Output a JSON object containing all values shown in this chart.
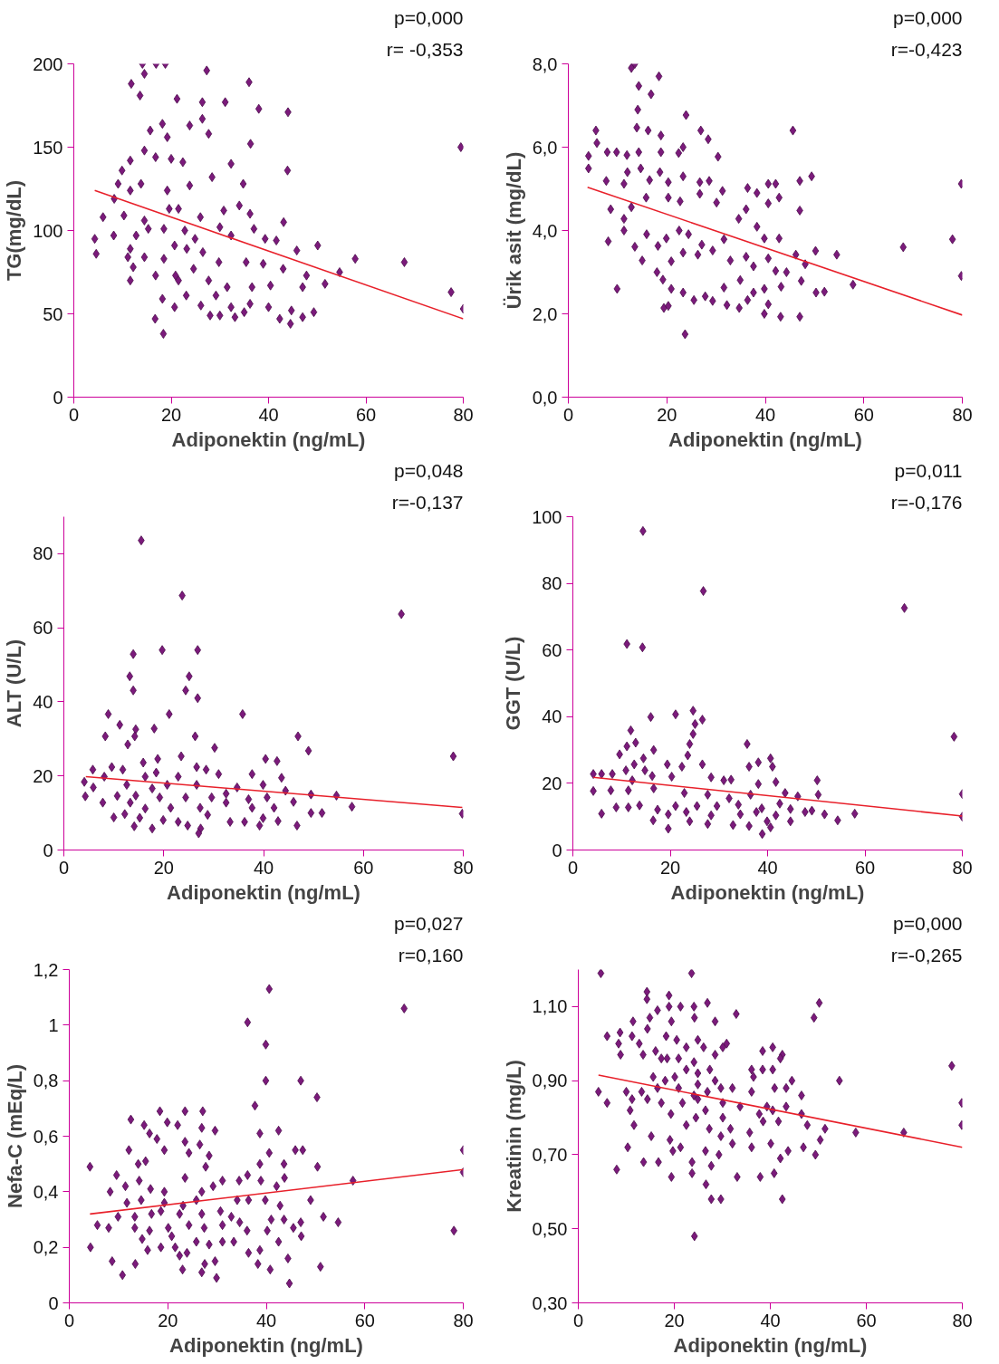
{
  "chart_data": [
    {
      "type": "scatter",
      "xlabel": "Adiponektin (ng/mL)",
      "ylabel": "TG(mg/dL)",
      "xlim": [
        0,
        80
      ],
      "xticks": [
        0,
        20,
        40,
        60,
        80
      ],
      "ylim": [
        0,
        200
      ],
      "yticks": [
        0,
        50,
        100,
        150,
        200
      ],
      "annotations": [
        "p=0,000",
        "r= -0,353"
      ],
      "series": [
        {
          "marker": "diamond",
          "color": "#7b1a7b",
          "x": [
            14.1,
            16.9,
            18.8,
            14.5,
            27.3,
            36,
            11.8,
            13.6,
            21.2,
            26.4,
            31.1,
            38,
            44,
            15.7,
            18.2,
            19.2,
            23.8,
            26.4,
            27.7,
            36.3,
            79.5,
            9.9,
            11.6,
            14.5,
            16.8,
            20,
            22.4,
            32.3,
            43.9,
            9.1,
            13.8,
            19.2,
            23.8,
            28.4,
            34.8,
            8.3,
            11.6,
            6,
            10.3,
            14.5,
            19.6,
            21.5,
            26,
            30.8,
            34,
            36.2,
            4.3,
            4.6,
            8.2,
            12.8,
            15.3,
            18.5,
            22.8,
            24.9,
            30,
            37,
            43.1,
            11.6,
            11.1,
            14.5,
            18.5,
            20.7,
            23.2,
            26.5,
            32.3,
            39.3,
            41.6,
            45.8,
            50.1,
            57.8,
            67.9,
            12.2,
            16.8,
            20.9,
            24.6,
            29.8,
            35.4,
            38.9,
            43,
            47.8,
            51.6,
            54.6,
            11.6,
            21.5,
            27.7,
            31.5,
            36.6,
            40.4,
            47,
            18.2,
            20.7,
            23.1,
            26.1,
            29.2,
            32.3,
            36.2,
            40,
            44.7,
            47,
            49.3,
            28,
            30,
            33.1,
            35,
            42.3,
            44.5,
            16.7,
            18.4,
            77.5,
            80
          ],
          "values": [
            200,
            200,
            200,
            194,
            196,
            189,
            188,
            181,
            179,
            177,
            177,
            173,
            171,
            160,
            164,
            156,
            163,
            167,
            158,
            152,
            150,
            136,
            142,
            148,
            144,
            143,
            141,
            140,
            136,
            128,
            128,
            124,
            127,
            132,
            128,
            119,
            124,
            108,
            109,
            106,
            113,
            113,
            108,
            112,
            115,
            110,
            95,
            86,
            97,
            97,
            101,
            101,
            100,
            95,
            102,
            101,
            105,
            89,
            84,
            84,
            83,
            91,
            89,
            87,
            97,
            95,
            94,
            88,
            91,
            83,
            81,
            78,
            73,
            73,
            77,
            81,
            81,
            80,
            77,
            73,
            68,
            75,
            70,
            70,
            70,
            66,
            66,
            67,
            66,
            59,
            54,
            61,
            55,
            61,
            54,
            56,
            54,
            52,
            48,
            51,
            49,
            49,
            48,
            51,
            47,
            44,
            47,
            38,
            63,
            53
          ]
        },
        {
          "type": "line",
          "color": "#e8202a",
          "x": [
            4.3,
            80
          ],
          "values": [
            124,
            47
          ]
        }
      ]
    },
    {
      "type": "scatter",
      "xlabel": "Adiponektin (ng/mL)",
      "ylabel": "Ürik asit (mg/dL)",
      "xlim": [
        0,
        80
      ],
      "xticks": [
        0,
        20,
        40,
        60,
        80
      ],
      "ylim": [
        0,
        8
      ],
      "yticks": [
        {
          "value": 0,
          "label": "0,0"
        },
        {
          "value": 2,
          "label": "2,0"
        },
        {
          "value": 4,
          "label": "4,0"
        },
        {
          "value": 6,
          "label": "6,0"
        },
        {
          "value": 8,
          "label": "8,0"
        }
      ],
      "annotations": [
        "p=0,000",
        "r=-0,423"
      ],
      "series": [
        {
          "marker": "diamond",
          "color": "#7b1a7b",
          "x": [
            12.8,
            13.5,
            18.4,
            14.3,
            16.8,
            14.1,
            23.9,
            5.6,
            13.9,
            16.2,
            18.8,
            26.9,
            28.4,
            45.6,
            4.1,
            4.1,
            5.8,
            7.9,
            9.8,
            11.9,
            14.3,
            18.8,
            22.4,
            23.3,
            30.4,
            7.7,
            11.3,
            12,
            14.7,
            16.5,
            18.6,
            20.3,
            23.3,
            26.7,
            28.6,
            31.3,
            36.4,
            38.3,
            40.6,
            42.1,
            47,
            49.4,
            79.8,
            8.6,
            11.3,
            12.8,
            15.8,
            20.3,
            22.7,
            26.7,
            30.1,
            34.6,
            36.1,
            40.6,
            42.8,
            47,
            8.1,
            11.3,
            13.5,
            15.9,
            18.2,
            19.9,
            22.5,
            24.4,
            27.1,
            31.6,
            38.3,
            39.8,
            42.8,
            15,
            18,
            20.9,
            23.3,
            26.3,
            29.3,
            32.9,
            36.1,
            37.6,
            40.6,
            42.1,
            44.3,
            46.2,
            48.1,
            50.2,
            54.5,
            68,
            78,
            79.8,
            9.9,
            19.2,
            20.9,
            23.3,
            25.5,
            27.8,
            29.3,
            31.6,
            34.9,
            37.6,
            39.8,
            43.2,
            47.3,
            50.3,
            52,
            57.8,
            19.4,
            20.3,
            32.2,
            34.7,
            36.4,
            40.6,
            39.8,
            43.1,
            47,
            23.7
          ],
          "values": [
            7.9,
            8.0,
            7.7,
            7.47,
            7.27,
            6.9,
            6.77,
            6.4,
            6.47,
            6.4,
            6.28,
            6.4,
            6.19,
            6.4,
            5.79,
            5.49,
            6.1,
            5.88,
            5.88,
            5.81,
            5.88,
            5.88,
            5.86,
            6.0,
            5.77,
            5.19,
            5.12,
            5.4,
            5.49,
            5.21,
            5.4,
            5.16,
            5.3,
            5.16,
            5.19,
            4.95,
            5.02,
            4.9,
            5.12,
            5.12,
            5.19,
            5.3,
            5.12,
            4.51,
            4.28,
            4.56,
            4.79,
            4.79,
            4.7,
            4.88,
            4.67,
            4.28,
            4.51,
            4.65,
            4.79,
            4.48,
            3.74,
            4.0,
            3.61,
            3.91,
            3.63,
            3.81,
            4.0,
            3.91,
            3.66,
            3.79,
            4.09,
            3.81,
            3.81,
            3.28,
            3.0,
            3.26,
            3.47,
            3.42,
            3.52,
            3.28,
            3.37,
            3.14,
            3.33,
            3.03,
            3.0,
            3.42,
            3.19,
            3.51,
            3.42,
            3.6,
            3.79,
            2.91,
            2.6,
            2.82,
            2.6,
            2.51,
            2.33,
            2.42,
            2.31,
            2.63,
            2.81,
            2.51,
            2.6,
            2.65,
            2.79,
            2.51,
            2.53,
            2.7,
            2.14,
            2.19,
            2.21,
            2.14,
            2.33,
            2.23,
            2.0,
            1.93,
            1.93,
            1.51
          ]
        },
        {
          "type": "line",
          "color": "#e8202a",
          "x": [
            3.9,
            80
          ],
          "values": [
            5.04,
            1.97
          ]
        }
      ]
    },
    {
      "type": "scatter",
      "xlabel": "Adiponektin (ng/mL)",
      "ylabel": "ALT (U/L)",
      "xlim": [
        0,
        80
      ],
      "xticks": [
        0,
        20,
        40,
        60,
        80
      ],
      "ylim": [
        0,
        90
      ],
      "yticks": [
        0,
        20,
        40,
        60,
        80
      ],
      "annotations": [
        "p=0,048",
        "r=-0,137"
      ],
      "series": [
        {
          "marker": "diamond",
          "color": "#7b1a7b",
          "x": [
            15.5,
            23.7,
            67.6,
            13.9,
            19.7,
            26.8,
            13.2,
            25.1,
            13.9,
            24.4,
            26.8,
            8.9,
            21.1,
            35.8,
            11.2,
            18.1,
            14.4,
            8.3,
            14.2,
            26.3,
            46.9,
            12.8,
            30.2,
            49,
            78,
            23.5,
            40.4,
            42.7,
            15.9,
            18.8,
            9.6,
            5.8,
            11.8,
            26.6,
            28.5,
            31,
            37.7,
            43.6,
            4.1,
            8.1,
            16.3,
            18.5,
            22.9,
            5.9,
            12.6,
            17.7,
            20.7,
            26.6,
            34.7,
            39.9,
            44.4,
            49.5,
            54.6,
            4.3,
            10.7,
            14.4,
            19.2,
            24.4,
            29.6,
            32.5,
            37,
            40.7,
            46,
            7.8,
            13.3,
            16.3,
            21.4,
            27.3,
            32.5,
            37.7,
            42.1,
            57.7,
            49.5,
            51.7,
            79.8,
            10,
            12.2,
            15.2,
            19.9,
            22.9,
            28.8,
            33.3,
            36.2,
            39.9,
            42.9,
            14.1,
            17.7,
            24.8,
            27.4,
            39.2,
            46.7,
            27
          ],
          "values": [
            83.6,
            68.7,
            63.7,
            52.9,
            54,
            54,
            46.9,
            46.9,
            43.1,
            43.1,
            41,
            36.7,
            36.7,
            36.7,
            33.8,
            32.8,
            32.6,
            30.7,
            30.7,
            30.7,
            30.7,
            28.5,
            27.6,
            26.8,
            25.3,
            25.3,
            24.6,
            24,
            23.6,
            24.6,
            22.4,
            21.7,
            21.7,
            22.4,
            21.7,
            20.5,
            20.5,
            19.5,
            18.4,
            19.8,
            19.8,
            20.9,
            19.8,
            16.9,
            17.6,
            16.6,
            17.6,
            17.6,
            16.9,
            17.6,
            16,
            15,
            14.7,
            14.5,
            14.6,
            14.7,
            14.2,
            14.2,
            14.2,
            15.2,
            13.7,
            14.2,
            13,
            12.8,
            12.8,
            11.2,
            11.4,
            11.4,
            12.8,
            11.4,
            11.4,
            11.7,
            10,
            10,
            9.8,
            8.8,
            9.7,
            8.7,
            8.1,
            7.6,
            9.5,
            7.6,
            7.6,
            8.6,
            7.8,
            6.4,
            5.8,
            6.6,
            5.8,
            6.6,
            6.6,
            4.5
          ]
        },
        {
          "type": "line",
          "color": "#e8202a",
          "x": [
            4.4,
            79.8
          ],
          "values": [
            19.8,
            11.5
          ]
        }
      ]
    },
    {
      "type": "scatter",
      "xlabel": "Adiponektin (ng/mL)",
      "ylabel": "GGT (U/L)",
      "xlim": [
        0,
        80
      ],
      "xticks": [
        0,
        20,
        40,
        60,
        80
      ],
      "ylim": [
        0,
        100
      ],
      "yticks": [
        0,
        20,
        40,
        60,
        80,
        100
      ],
      "annotations": [
        "p=0,011",
        "r=-0,176"
      ],
      "series": [
        {
          "marker": "diamond",
          "color": "#7b1a7b",
          "x": [
            14.4,
            26.8,
            68.1,
            11.1,
            14.3,
            24.7,
            21.1,
            16,
            26.6,
            25.1,
            24.7,
            11.9,
            78.3,
            35.8,
            24,
            9.6,
            11.1,
            12.9,
            14.5,
            16.6,
            23.6,
            40.6,
            12.6,
            14.8,
            19.4,
            22.4,
            26.6,
            36.2,
            38.1,
            41,
            10.9,
            4.2,
            5.9,
            8.1,
            16.3,
            20.3,
            28.4,
            31,
            32.5,
            38.1,
            41.7,
            50.2,
            12.2,
            4.2,
            7.8,
            11.4,
            16.6,
            22.9,
            27.7,
            32.1,
            36.5,
            43.6,
            46.2,
            50.4,
            8.9,
            11.4,
            13.7,
            17.4,
            21.1,
            25.5,
            29.6,
            34,
            38.8,
            42.5,
            44.7,
            47.7,
            80,
            5.9,
            19.6,
            23.3,
            28.4,
            34.4,
            37.7,
            41.7,
            49.1,
            51.7,
            57.9,
            80,
            16.5,
            24,
            27.7,
            32.9,
            36.2,
            39.9,
            44.7,
            54.4,
            19.6,
            40.6,
            38.9
          ],
          "values": [
            95.7,
            77.7,
            72.6,
            61.8,
            60.8,
            41.8,
            40.7,
            39.9,
            39.1,
            37.8,
            34.8,
            35.9,
            34,
            31.8,
            31.8,
            28.7,
            31.1,
            32.2,
            27.5,
            30,
            28.4,
            27.5,
            25.7,
            23.9,
            25.7,
            25,
            25.7,
            25,
            26.3,
            25,
            23.9,
            22.8,
            22.8,
            22.8,
            22.2,
            22,
            21.8,
            20.9,
            21.1,
            19.8,
            20.4,
            20.9,
            20.9,
            17.7,
            17.9,
            17.9,
            18.5,
            17.1,
            16.6,
            15.5,
            16.6,
            17.1,
            16.1,
            16.6,
            12.8,
            12.8,
            13.4,
            12.1,
            13.2,
            13.2,
            13.2,
            13.6,
            12.5,
            13.9,
            12.3,
            11.4,
            16.8,
            10.9,
            10.7,
            11.4,
            10.4,
            10.7,
            11.4,
            10.4,
            11.8,
            10.7,
            10.9,
            10,
            8.9,
            8.6,
            7.8,
            7.5,
            7.2,
            8.6,
            8.6,
            8.9,
            6.4,
            6.8,
            4.8
          ]
        },
        {
          "type": "line",
          "color": "#e8202a",
          "x": [
            4.2,
            80
          ],
          "values": [
            21.8,
            10.2
          ]
        }
      ]
    },
    {
      "type": "scatter",
      "xlabel": "Adiponektin (ng/mL)",
      "ylabel": "Nefa-C (mEq/L)",
      "xlim": [
        0,
        80
      ],
      "xticks": [
        0,
        20,
        40,
        60,
        80
      ],
      "ylim": [
        0,
        1.2
      ],
      "yticks": [
        0,
        {
          "value": 0.2,
          "label": "0,2"
        },
        {
          "value": 0.4,
          "label": "0,4"
        },
        {
          "value": 0.6,
          "label": "0,6"
        },
        {
          "value": 0.8,
          "label": "0,8"
        },
        1,
        {
          "value": 1.2,
          "label": "1,2"
        }
      ],
      "annotations": [
        "p=0,027",
        "r=0,160"
      ],
      "series": [
        {
          "marker": "diamond",
          "color": "#7b1a7b",
          "x": [
            40.6,
            68,
            36.2,
            39.9,
            39.9,
            47,
            50.3,
            37.7,
            18.4,
            23.5,
            27.1,
            12.5,
            19.9,
            15.2,
            22,
            26.9,
            29.6,
            16.3,
            17.8,
            23.5,
            26.5,
            38.7,
            42.5,
            19.3,
            12.1,
            24.3,
            28.4,
            40.6,
            45.9,
            47.4,
            80,
            14,
            15.5,
            27.7,
            38.7,
            43.6,
            50.4,
            4.2,
            9.6,
            14.2,
            23.5,
            31.1,
            34.5,
            36.2,
            38.9,
            43.7,
            57.6,
            80,
            11.4,
            16.5,
            19.3,
            26.9,
            29.2,
            42.1,
            8.3,
            11.7,
            14.6,
            19.3,
            23.1,
            25.8,
            34.1,
            36.4,
            39.8,
            42.8,
            49,
            9.9,
            13.3,
            16.7,
            18.6,
            22.4,
            26.9,
            30.7,
            32.9,
            41,
            43.6,
            51.6,
            5.7,
            8,
            13.3,
            16.3,
            20.1,
            24.3,
            27.4,
            31.1,
            34.6,
            36.1,
            40.2,
            45.5,
            47,
            54.6,
            78.1,
            14.8,
            20.8,
            25.8,
            31.1,
            33.4,
            42.5,
            47.1,
            4.3,
            15.9,
            18.6,
            21.5,
            23.9,
            28.4,
            36.4,
            38.7,
            8.7,
            13.4,
            22.4,
            29.6,
            38.3,
            44.4,
            10.8,
            23,
            26.9,
            27.5,
            29.9,
            40.8,
            51,
            44.7
          ],
          "values": [
            1.13,
            1.06,
            1.01,
            0.93,
            0.8,
            0.8,
            0.74,
            0.71,
            0.69,
            0.69,
            0.69,
            0.66,
            0.65,
            0.64,
            0.64,
            0.63,
            0.62,
            0.61,
            0.59,
            0.58,
            0.57,
            0.61,
            0.62,
            0.55,
            0.55,
            0.54,
            0.53,
            0.54,
            0.55,
            0.55,
            0.55,
            0.5,
            0.51,
            0.49,
            0.5,
            0.5,
            0.49,
            0.49,
            0.46,
            0.44,
            0.45,
            0.44,
            0.44,
            0.46,
            0.44,
            0.45,
            0.44,
            0.47,
            0.42,
            0.41,
            0.4,
            0.4,
            0.42,
            0.42,
            0.4,
            0.36,
            0.37,
            0.36,
            0.35,
            0.37,
            0.37,
            0.37,
            0.37,
            0.35,
            0.37,
            0.31,
            0.31,
            0.32,
            0.33,
            0.32,
            0.32,
            0.33,
            0.31,
            0.3,
            0.3,
            0.31,
            0.28,
            0.27,
            0.27,
            0.26,
            0.27,
            0.28,
            0.27,
            0.28,
            0.29,
            0.26,
            0.26,
            0.27,
            0.29,
            0.29,
            0.26,
            0.23,
            0.24,
            0.22,
            0.22,
            0.22,
            0.22,
            0.24,
            0.2,
            0.19,
            0.2,
            0.2,
            0.18,
            0.21,
            0.18,
            0.19,
            0.15,
            0.14,
            0.17,
            0.15,
            0.14,
            0.16,
            0.1,
            0.12,
            0.11,
            0.14,
            0.09,
            0.12,
            0.13,
            0.07
          ]
        },
        {
          "type": "line",
          "color": "#e8202a",
          "x": [
            4.2,
            80
          ],
          "values": [
            0.32,
            0.48
          ]
        }
      ]
    },
    {
      "type": "scatter",
      "xlabel": "Adiponektin (ng/mL)",
      "ylabel": "Kreatinin (mg/L)",
      "xlim": [
        0,
        80
      ],
      "xticks": [
        0,
        20,
        40,
        60,
        80
      ],
      "ylim": [
        0.3,
        1.2
      ],
      "yticks": [
        {
          "value": 0.3,
          "label": "0,30"
        },
        {
          "value": 0.5,
          "label": "0,50"
        },
        {
          "value": 0.7,
          "label": "0,70"
        },
        {
          "value": 0.9,
          "label": "0,90"
        },
        {
          "value": 1.1,
          "label": "1,10"
        }
      ],
      "annotations": [
        "p=0,000",
        "r=-0,265"
      ],
      "series": [
        {
          "marker": "diamond",
          "color": "#7b1a7b",
          "x": [
            4.7,
            23.6,
            14.3,
            14.3,
            18.9,
            18.9,
            16.5,
            21.3,
            24.1,
            26.9,
            32.9,
            50.2,
            49.1,
            11.4,
            14.9,
            19.4,
            24.2,
            28.5,
            14.4,
            8.7,
            6,
            11.2,
            12.7,
            18.3,
            20.5,
            24.9,
            30.9,
            8.4,
            8.8,
            13.5,
            16.1,
            18.5,
            22.5,
            26.1,
            28.5,
            30.1,
            38.4,
            40.5,
            42.5,
            42.1,
            77.8,
            17.3,
            20.9,
            24.1,
            22.5,
            24.9,
            27.4,
            36.1,
            38.4,
            40.5,
            15.6,
            18.1,
            20.1,
            24.9,
            28.5,
            36.5,
            44.5,
            54.4,
            4.2,
            6,
            10,
            13.2,
            16.5,
            20.9,
            24.1,
            26.9,
            29.7,
            32.1,
            36.1,
            40.9,
            43.3,
            11.2,
            14.4,
            17.3,
            21.7,
            24.9,
            30.1,
            33.7,
            39.3,
            43.3,
            46.5,
            10.8,
            19.3,
            26.5,
            30.1,
            37.7,
            40.5,
            46.5,
            79.9,
            11.6,
            15.2,
            22.5,
            24.5,
            27.3,
            31.7,
            35.7,
            38.5,
            41.7,
            47.7,
            51.4,
            19.1,
            21.3,
            29.7,
            32.1,
            36.1,
            40.1,
            43.7,
            46.9,
            50.4,
            57.8,
            67.8,
            79.9,
            10.3,
            13.6,
            16.7,
            19.7,
            23.7,
            26.5,
            29.3,
            42.1,
            49.4,
            8,
            19.4,
            23.7,
            27.7,
            33.1,
            37.9,
            40.8,
            26.6,
            27.7,
            29.7,
            42.5,
            24.2
          ],
          "values": [
            1.19,
            1.19,
            1.14,
            1.12,
            1.13,
            1.1,
            1.09,
            1.1,
            1.1,
            1.11,
            1.08,
            1.11,
            1.07,
            1.06,
            1.07,
            1.06,
            1.07,
            1.06,
            1.04,
            1.03,
            1.02,
            1.02,
            1,
            1.02,
            1.01,
            1.01,
            1,
            1,
            0.97,
            0.97,
            0.98,
            0.96,
            0.99,
            0.99,
            0.97,
            0.99,
            0.98,
            0.99,
            0.97,
            0.96,
            0.94,
            0.96,
            0.96,
            0.95,
            0.93,
            0.92,
            0.93,
            0.93,
            0.93,
            0.93,
            0.91,
            0.9,
            0.91,
            0.89,
            0.9,
            0.91,
            0.9,
            0.9,
            0.87,
            0.84,
            0.87,
            0.87,
            0.88,
            0.88,
            0.86,
            0.87,
            0.88,
            0.88,
            0.87,
            0.88,
            0.88,
            0.85,
            0.85,
            0.84,
            0.84,
            0.85,
            0.84,
            0.83,
            0.83,
            0.83,
            0.86,
            0.82,
            0.81,
            0.82,
            0.8,
            0.81,
            0.82,
            0.81,
            0.84,
            0.78,
            0.75,
            0.78,
            0.8,
            0.77,
            0.77,
            0.76,
            0.79,
            0.79,
            0.78,
            0.77,
            0.74,
            0.72,
            0.75,
            0.73,
            0.72,
            0.73,
            0.71,
            0.72,
            0.74,
            0.76,
            0.76,
            0.78,
            0.72,
            0.68,
            0.68,
            0.71,
            0.68,
            0.71,
            0.7,
            0.69,
            0.7,
            0.66,
            0.64,
            0.65,
            0.67,
            0.64,
            0.64,
            0.65,
            0.62,
            0.58,
            0.58,
            0.58,
            0.48
          ]
        },
        {
          "type": "line",
          "color": "#e8202a",
          "x": [
            4.2,
            80
          ],
          "values": [
            0.915,
            0.72
          ]
        }
      ]
    }
  ]
}
